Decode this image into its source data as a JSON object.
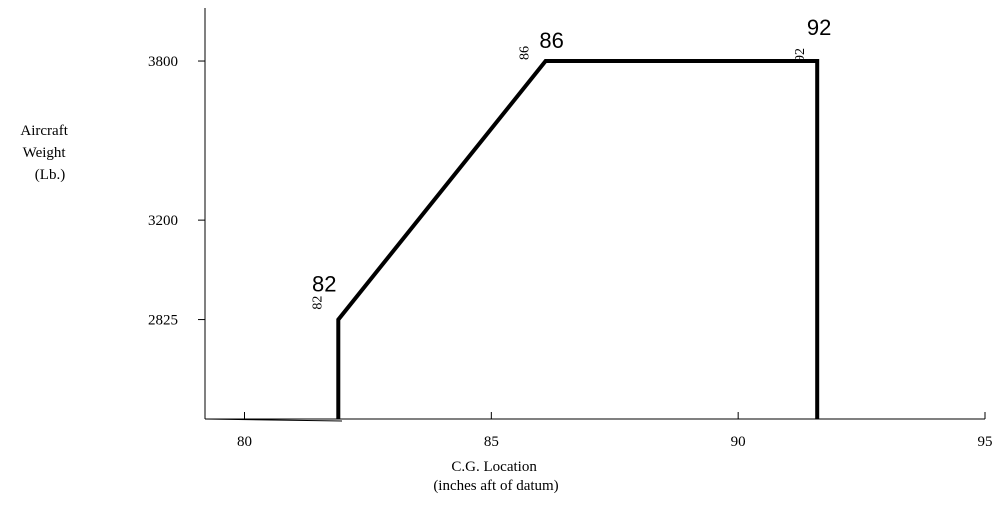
{
  "chart_data": {
    "type": "line",
    "title": "",
    "xlabel": [
      "C.G. Location",
      "(inches aft of datum)"
    ],
    "ylabel": [
      "Aircraft",
      "Weight",
      "(Lb.)"
    ],
    "xlim": [
      79.2,
      95
    ],
    "ylim": [
      2450,
      4000
    ],
    "x_ticks": [
      80,
      85,
      90,
      95
    ],
    "x_tick_labels": [
      "80",
      "85",
      "90",
      "95"
    ],
    "y_ticks": [
      2825,
      3200,
      3800
    ],
    "y_tick_labels": [
      "2825",
      "3200",
      "3800"
    ],
    "grid": false,
    "legend": "none",
    "envelope": {
      "color": "#000000",
      "points": [
        {
          "x": 81.9,
          "y": 2450
        },
        {
          "x": 81.9,
          "y": 2825
        },
        {
          "x": 86.1,
          "y": 3800
        },
        {
          "x": 91.6,
          "y": 3800
        },
        {
          "x": 91.6,
          "y": 2450
        }
      ]
    },
    "annotations": [
      {
        "text": "82",
        "x": 81.9,
        "y": 2825,
        "style": "big"
      },
      {
        "text": "82",
        "x": 81.9,
        "y": 2825,
        "style": "small-rotated"
      },
      {
        "text": "86",
        "x": 86.1,
        "y": 3800,
        "style": "big"
      },
      {
        "text": "86",
        "x": 86.1,
        "y": 3800,
        "style": "small-rotated"
      },
      {
        "text": "92",
        "x": 91.6,
        "y": 3800,
        "style": "big"
      },
      {
        "text": "92",
        "x": 91.6,
        "y": 3800,
        "style": "small-rotated"
      }
    ]
  }
}
